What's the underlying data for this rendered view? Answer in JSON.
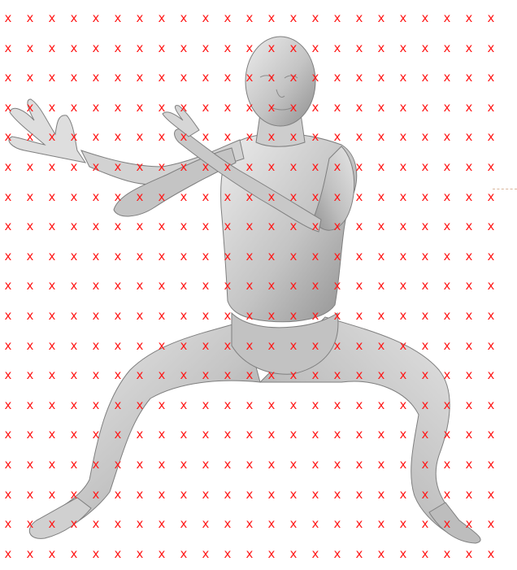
{
  "scene": {
    "background": "#ffffff",
    "mesh_color": "#c9c9c9",
    "mesh_shadow": "#8f8f8f",
    "mesh_highlight": "#ececec",
    "subject": "human-body-mesh",
    "pose": "wide-squat-with-arms-raised"
  },
  "grid": {
    "glyph": "x",
    "color": "#ff1a1a",
    "columns": 23,
    "rows": 19
  }
}
